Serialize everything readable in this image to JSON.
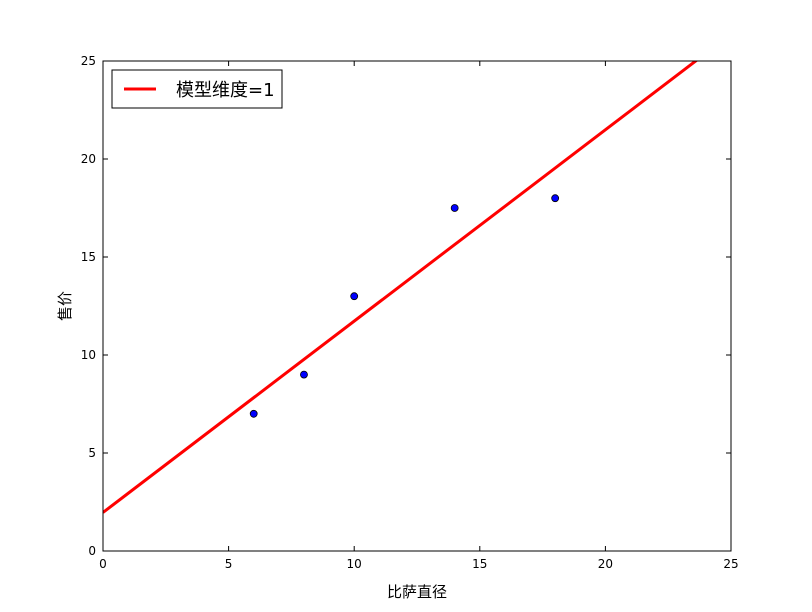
{
  "chart_data": {
    "type": "scatter",
    "xlabel": "比萨直径",
    "ylabel": "售价",
    "xlim": [
      0,
      25
    ],
    "ylim": [
      0,
      25
    ],
    "xticks": [
      0,
      5,
      10,
      15,
      20,
      25
    ],
    "yticks": [
      0,
      5,
      10,
      15,
      20,
      25
    ],
    "grid": false,
    "legend_position": "top-left",
    "points": [
      {
        "x": 6,
        "y": 7
      },
      {
        "x": 8,
        "y": 9
      },
      {
        "x": 10,
        "y": 13
      },
      {
        "x": 14,
        "y": 17.5
      },
      {
        "x": 18,
        "y": 18
      }
    ],
    "point_color": "#0000ff",
    "series": [
      {
        "name": "模型维度=1",
        "type": "line",
        "color": "#ff0000",
        "intercept": 1.9655,
        "slope": 0.9763,
        "x_range": [
          0,
          25
        ]
      }
    ]
  }
}
